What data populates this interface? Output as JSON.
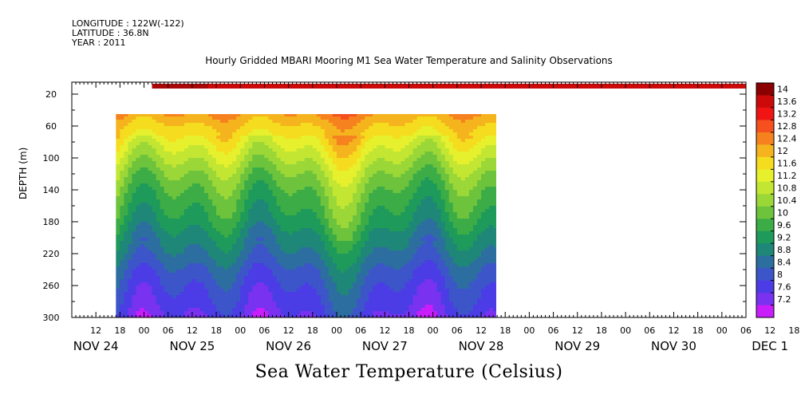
{
  "header": {
    "longitude": "LONGITUDE : 122W(-122)",
    "latitude": "LATITUDE : 36.8N",
    "year": "YEAR : 2011"
  },
  "chart_data": {
    "type": "heatmap",
    "title": "Hourly Gridded MBARI Mooring M1 Sea Water Temperature and Salinity Observations",
    "ylabel": "DEPTH (m)",
    "footer_label": "Sea Water Temperature (Celsius)",
    "y_reversed": true,
    "ylim": [
      300,
      5
    ],
    "y_ticks": [
      20,
      60,
      100,
      140,
      180,
      220,
      260,
      300
    ],
    "x_range_hours": [
      "NOV 24 06:00",
      "DEC 1 12:00"
    ],
    "x_hour_ticks": [
      "12",
      "18",
      "00",
      "06",
      "12",
      "18",
      "00",
      "06",
      "12",
      "18",
      "00",
      "06",
      "12",
      "18",
      "00",
      "06",
      "12",
      "18",
      "00",
      "06",
      "12",
      "18",
      "00",
      "06",
      "12",
      "18",
      "00",
      "06",
      "12",
      "18",
      "00",
      "06"
    ],
    "x_day_labels": [
      "NOV 24",
      "NOV 25",
      "NOV 26",
      "NOV 27",
      "NOV 28",
      "NOV 29",
      "NOV 30",
      "DEC  1"
    ],
    "data_extent": {
      "x_start": "NOV 24 17:00",
      "x_end": "NOV 28 19:00",
      "depth_min": 40,
      "depth_max": 300
    },
    "surface_band": {
      "depth": 10,
      "x_start": "NOV 25 02:00",
      "x_end": "DEC 1 12:00",
      "temperature": 13.6
    },
    "colorbar": {
      "levels": [
        14,
        13.6,
        13.2,
        12.8,
        12.4,
        12,
        11.6,
        11.2,
        10.8,
        10.4,
        10,
        9.6,
        9.2,
        8.8,
        8.4,
        8,
        7.6,
        7.2
      ],
      "colors": [
        "#8b0000",
        "#cc0a0a",
        "#f01414",
        "#f5501e",
        "#f5821e",
        "#f5b41e",
        "#f5dc1e",
        "#e6f02d",
        "#c3e632",
        "#9bd737",
        "#6ec33c",
        "#3cad46",
        "#1e9a5a",
        "#1e8778",
        "#2d6ea0",
        "#3c55c8",
        "#4b3ce6",
        "#7832f0",
        "#c81efa"
      ]
    },
    "temperature_profile": {
      "depths": [
        40,
        50,
        60,
        70,
        80,
        100,
        120,
        140,
        160,
        180,
        200,
        220,
        240,
        260,
        280,
        300
      ],
      "typical_temps": [
        12.6,
        12.3,
        12.0,
        11.8,
        11.5,
        11.0,
        10.5,
        10.1,
        9.8,
        9.5,
        9.1,
        8.8,
        8.4,
        8.1,
        7.9,
        7.6
      ]
    }
  }
}
